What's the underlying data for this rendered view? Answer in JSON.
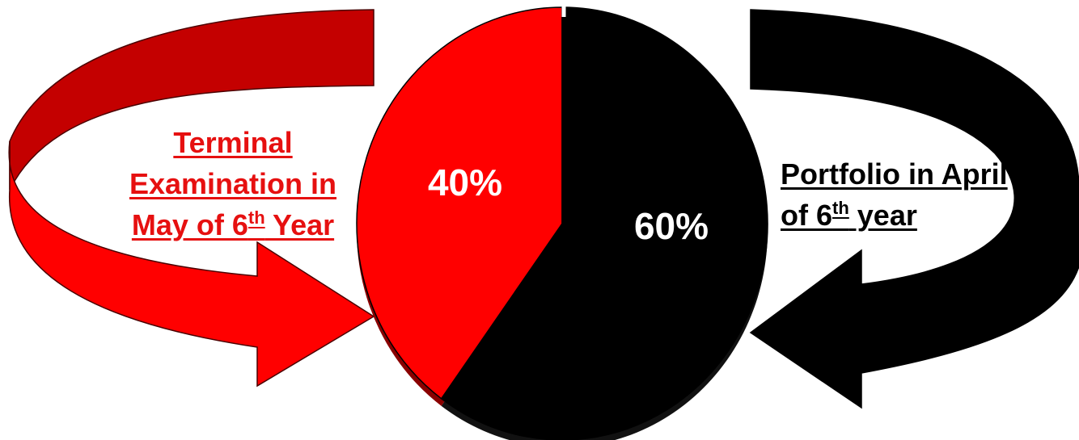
{
  "chart_data": {
    "type": "pie",
    "title": "",
    "slices": [
      {
        "label": "Terminal Examination in May of 6th Year",
        "value": 40,
        "display": "40%",
        "color": "#ff0000"
      },
      {
        "label": "Portfolio in April of 6th year",
        "value": 60,
        "display": "60%",
        "color": "#000000"
      }
    ],
    "callouts": {
      "left": {
        "line1": "Terminal",
        "line2": "Examination in",
        "line3_pre": "May of 6",
        "line3_sup": "th",
        "line3_post": " Year",
        "color": "#e61010",
        "arrow_color": "#ff0000",
        "arrow_shade": "#c00000"
      },
      "right": {
        "line1": "Portfolio in April",
        "line2_pre": "of 6",
        "line2_sup": "th",
        "line2_post": " year",
        "color": "#000000",
        "arrow_color": "#000000"
      }
    },
    "legend": "none"
  }
}
